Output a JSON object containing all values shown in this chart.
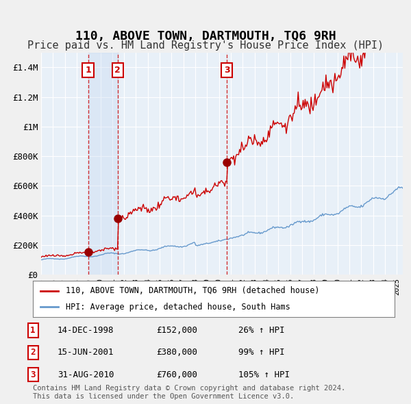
{
  "title": "110, ABOVE TOWN, DARTMOUTH, TQ6 9RH",
  "subtitle": "Price paid vs. HM Land Registry's House Price Index (HPI)",
  "hpi_label": "HPI: Average price, detached house, South Hams",
  "price_label": "110, ABOVE TOWN, DARTMOUTH, TQ6 9RH (detached house)",
  "purchases": [
    {
      "num": 1,
      "date": "14-DEC-1998",
      "price": 152000,
      "pct": "26%",
      "year": 1998.96
    },
    {
      "num": 2,
      "date": "15-JUN-2001",
      "price": 380000,
      "pct": "99%",
      "year": 2001.46
    },
    {
      "num": 3,
      "date": "31-AUG-2010",
      "price": 760000,
      "pct": "105%",
      "year": 2010.67
    }
  ],
  "ylim": [
    0,
    1500000
  ],
  "yticks": [
    0,
    200000,
    400000,
    600000,
    800000,
    1000000,
    1200000,
    1400000
  ],
  "ytick_labels": [
    "£0",
    "£200K",
    "£400K",
    "£600K",
    "£800K",
    "£1M",
    "£1.2M",
    "£1.4M"
  ],
  "xlim_start": 1995.0,
  "xlim_end": 2025.5,
  "bg_color": "#dce9f5",
  "plot_bg_color": "#e8f0f8",
  "shade_color": "#c5d8f0",
  "grid_color": "#ffffff",
  "red_line_color": "#cc0000",
  "blue_line_color": "#6699cc",
  "marker_color": "#990000",
  "vline_color": "#cc0000",
  "box_color": "#cc0000",
  "footnote": "Contains HM Land Registry data © Crown copyright and database right 2024.\nThis data is licensed under the Open Government Licence v3.0.",
  "title_fontsize": 13,
  "subtitle_fontsize": 11
}
